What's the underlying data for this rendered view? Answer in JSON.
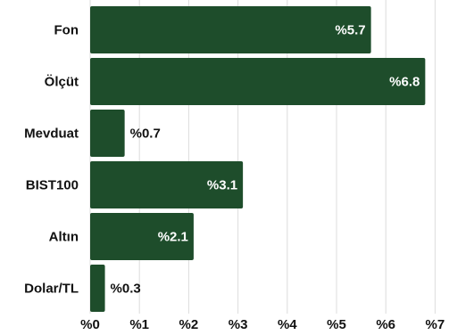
{
  "chart_data": {
    "type": "bar",
    "orientation": "horizontal",
    "categories": [
      "Fon",
      "Ölçüt",
      "Mevduat",
      "BIST100",
      "Altın",
      "Dolar/TL"
    ],
    "values": [
      5.7,
      6.8,
      0.7,
      3.1,
      2.1,
      0.3
    ],
    "value_labels": [
      "%5.7",
      "%6.8",
      "%0.7",
      "%3.1",
      "%2.1",
      "%0.3"
    ],
    "x_ticks": [
      "%0",
      "%1",
      "%2",
      "%3",
      "%4",
      "%5",
      "%6",
      "%7"
    ],
    "xlim": [
      0,
      7
    ],
    "grid": true,
    "bar_color": "#1e4d2b"
  }
}
